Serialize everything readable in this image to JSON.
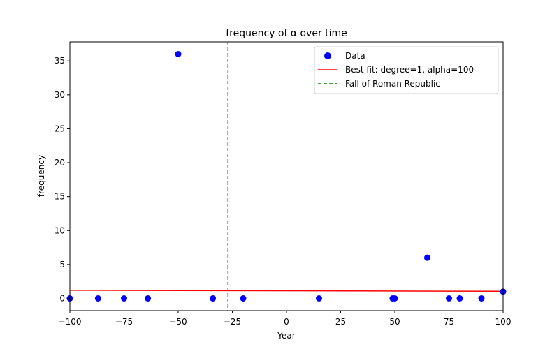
{
  "chart_data": {
    "type": "scatter",
    "title": "frequency of α over time",
    "xlabel": "Year",
    "ylabel": "frequency",
    "xlim": [
      -100,
      100
    ],
    "ylim": [
      -1.8,
      37.8
    ],
    "xticks": [
      -100,
      -75,
      -50,
      -25,
      0,
      25,
      50,
      75,
      100
    ],
    "yticks": [
      0,
      5,
      10,
      15,
      20,
      25,
      30,
      35
    ],
    "grid": false,
    "legend_position": "top-right",
    "series": [
      {
        "name": "Data",
        "kind": "scatter",
        "color": "#0000ff",
        "x": [
          -100,
          -87,
          -75,
          -64,
          -50,
          -34,
          -20,
          15,
          49,
          50,
          65,
          75,
          80,
          90,
          100
        ],
        "y": [
          0,
          0,
          0,
          0,
          36,
          0,
          0,
          0,
          0,
          0,
          6,
          0,
          0,
          0,
          1
        ]
      },
      {
        "name": "Best fit: degree=1, alpha=100",
        "kind": "line",
        "color": "#ff0000",
        "x": [
          -100,
          100
        ],
        "y": [
          1.2,
          1.05
        ]
      },
      {
        "name": "Fall of Roman Republic",
        "kind": "vline",
        "color": "#008000",
        "x": -27
      }
    ]
  }
}
